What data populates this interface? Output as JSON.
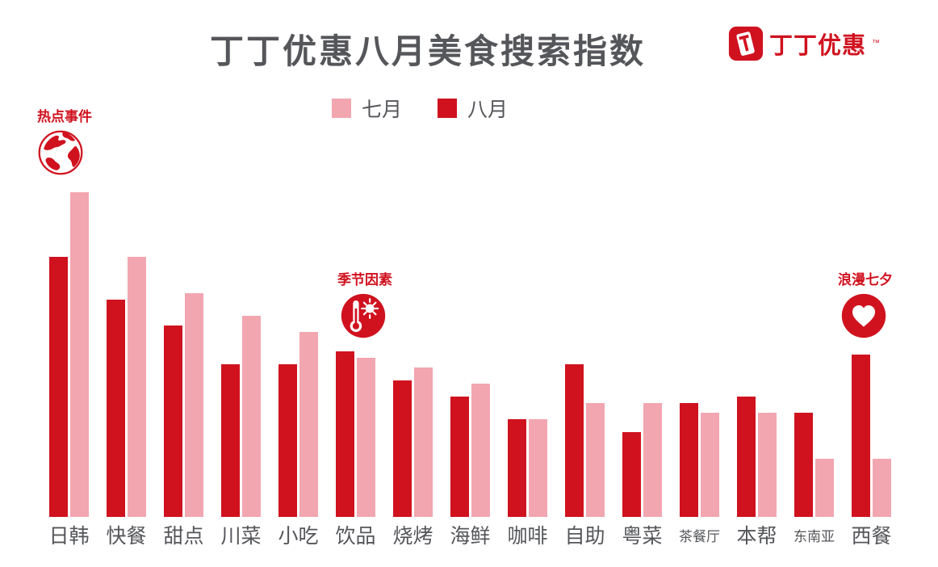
{
  "title": "丁丁优惠八月美食搜索指数",
  "logo": {
    "brand": "丁丁优惠",
    "tm": "™",
    "icon": "dingding-logo-icon"
  },
  "legend": {
    "items": [
      {
        "label": "七月",
        "color": "#f2a6b0"
      },
      {
        "label": "八月",
        "color": "#d0121f"
      }
    ]
  },
  "annotations": [
    {
      "label": "热点事件",
      "icon": "globe-icon",
      "target_category": "日韩"
    },
    {
      "label": "季节因素",
      "icon": "thermometer-sun-icon",
      "target_category": "饮品"
    },
    {
      "label": "浪漫七夕",
      "icon": "heart-icon",
      "target_category": "西餐"
    }
  ],
  "chart_data": {
    "type": "bar",
    "title": "丁丁优惠八月美食搜索指数",
    "categories": [
      "日韩",
      "快餐",
      "甜点",
      "川菜",
      "小吃",
      "饮品",
      "烧烤",
      "海鲜",
      "咖啡",
      "自助",
      "粤菜",
      "茶餐厅",
      "本帮",
      "东南亚",
      "西餐"
    ],
    "series": [
      {
        "name": "七月",
        "color": "#f2a6b0",
        "values": [
          100,
          80,
          69,
          62,
          57,
          49,
          46,
          41,
          30,
          35,
          35,
          32,
          32,
          18,
          18
        ]
      },
      {
        "name": "八月",
        "color": "#d0121f",
        "values": [
          80,
          67,
          59,
          47,
          47,
          51,
          42,
          37,
          30,
          47,
          26,
          35,
          37,
          32,
          50
        ]
      }
    ],
    "series_draw_order": [
      1,
      0
    ],
    "ylim": [
      0,
      100
    ],
    "grid": false,
    "legend_position": "top-center",
    "xlabel": "",
    "ylabel": ""
  }
}
